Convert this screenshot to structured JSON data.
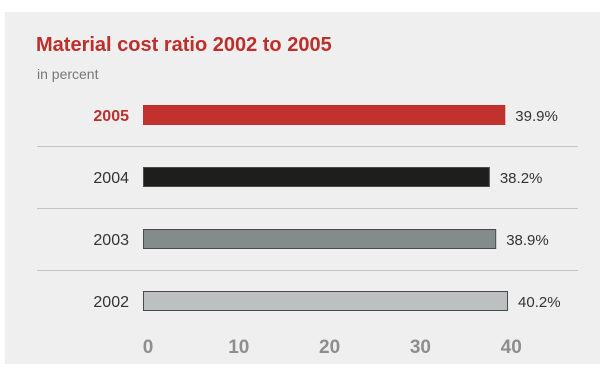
{
  "chart_data": {
    "type": "bar",
    "orientation": "horizontal",
    "title": "Material cost ratio 2002 to 2005",
    "subtitle": "in percent",
    "xlabel": "",
    "ylabel": "",
    "xlim": [
      0,
      40
    ],
    "x_ticks": [
      "0",
      "10",
      "20",
      "30",
      "40"
    ],
    "grid": false,
    "legend": "none",
    "categories": [
      "2005",
      "2004",
      "2003",
      "2002"
    ],
    "values": [
      39.9,
      38.2,
      38.9,
      40.2
    ],
    "value_labels": [
      "39.9%",
      "38.2%",
      "38.9%",
      "40.2%"
    ],
    "highlight_category": "2005",
    "colors": {
      "title": "#bd2f2b",
      "highlight_label": "#bd2f2b",
      "bar_fills": [
        "#c1312e",
        "#1e1e1c",
        "#848b8b",
        "#bcc0c0"
      ],
      "bar_stroke": "#4a4a4a",
      "tick_labels": "#8e8e8e",
      "separator": "#c4c4c4",
      "background": "#efefef"
    }
  }
}
